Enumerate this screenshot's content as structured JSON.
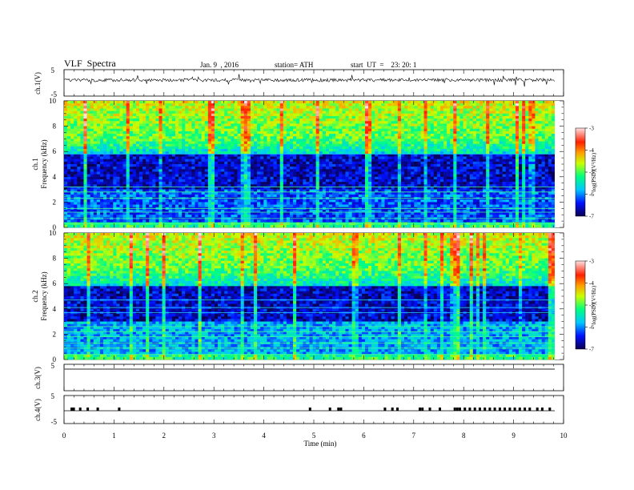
{
  "header": {
    "title": "VLF  Spectra",
    "date": "Jan. 9  , 2016",
    "station": "station= ATH",
    "start": "start  UT  =    23: 20: 1"
  },
  "chart_data": [
    {
      "type": "line",
      "ylabel": "ch.1(V)",
      "ylim": [
        -5,
        5
      ],
      "yticks": [
        "5",
        "-5"
      ],
      "description_values": {
        "baseline": 0.1
      }
    },
    {
      "type": "heatmap",
      "ylabel_top": "ch.1",
      "ylabel": "Frequency  (kHz)",
      "ylim": [
        0,
        10
      ],
      "yticks": [
        "0",
        "2",
        "4",
        "6",
        "8",
        "10"
      ],
      "colorbar": {
        "label": "log(PSD)(V²/Hz)",
        "ticks": [
          "-3",
          "-4",
          "-5",
          "-6",
          "-7"
        ],
        "range": [
          -7,
          -3
        ]
      }
    },
    {
      "type": "heatmap",
      "ylabel_top": "ch.2",
      "ylabel": "Frequency  (kHz)",
      "ylim": [
        0,
        10
      ],
      "yticks": [
        "0",
        "2",
        "4",
        "6",
        "8",
        "10"
      ],
      "colorbar": {
        "label": "log(PSD)(V²/Hz)",
        "ticks": [
          "-3",
          "-4",
          "-5",
          "-6",
          "-7"
        ],
        "range": [
          -7,
          -3
        ]
      }
    },
    {
      "type": "line",
      "ylabel": "ch.3(V)",
      "ylim": [
        -5,
        5
      ],
      "yticks": [
        "5"
      ],
      "description_values": {
        "baseline": 5
      }
    },
    {
      "type": "line",
      "ylabel": "ch.4(V)",
      "ylim": [
        -5,
        5
      ],
      "yticks": [
        "5",
        "-5"
      ]
    }
  ],
  "x_axis": {
    "label": "Time  (min)",
    "ticks": [
      "0",
      "1",
      "2",
      "3",
      "4",
      "5",
      "6",
      "7",
      "8",
      "9",
      "10"
    ],
    "xlim": [
      0,
      10
    ]
  }
}
